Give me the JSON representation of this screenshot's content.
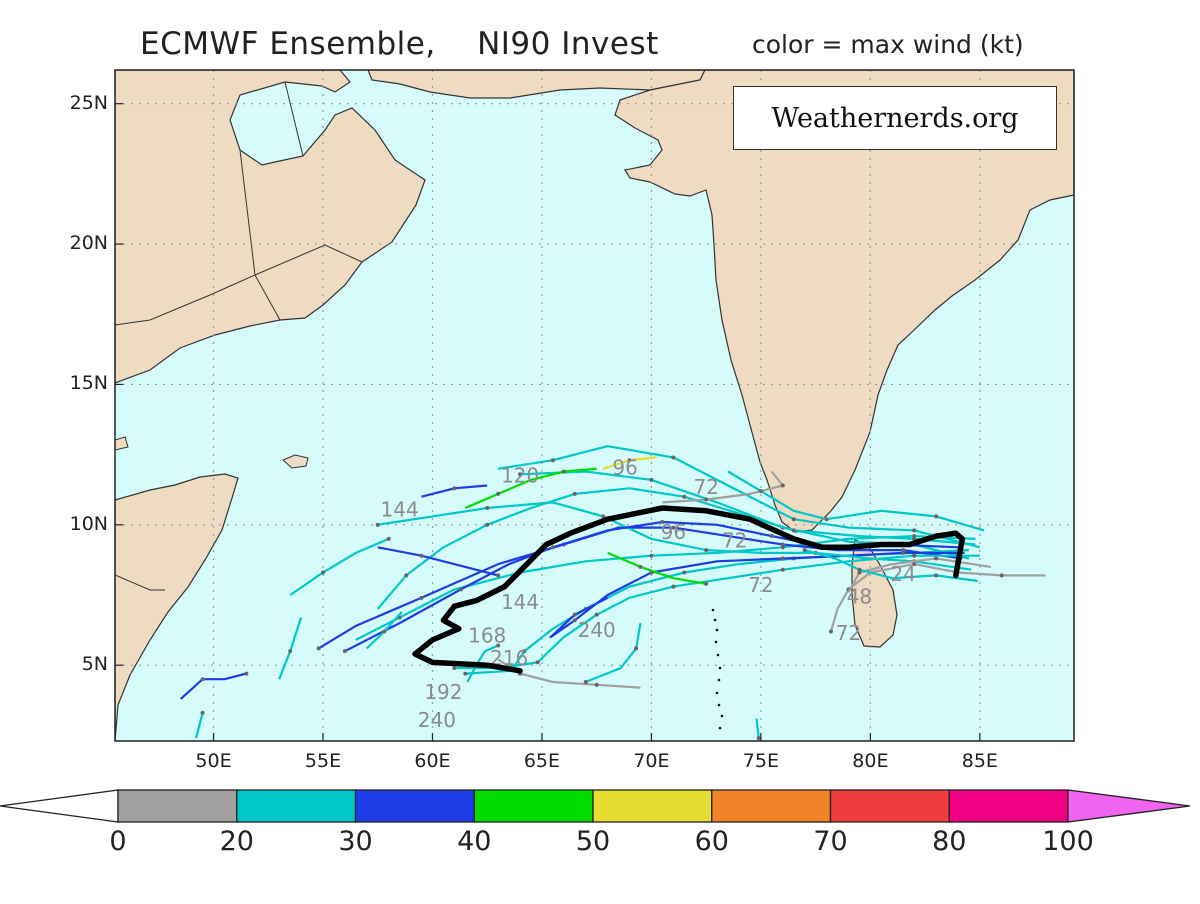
{
  "title": {
    "main": "ECMWF Ensemble,    NI90 Invest",
    "sub": "color = max wind (kt)"
  },
  "watermark": "Weathernerds.org",
  "axes": {
    "lon_ticks": [
      {
        "value": 50,
        "label": "50E"
      },
      {
        "value": 55,
        "label": "55E"
      },
      {
        "value": 60,
        "label": "60E"
      },
      {
        "value": 65,
        "label": "65E"
      },
      {
        "value": 70,
        "label": "70E"
      },
      {
        "value": 75,
        "label": "75E"
      },
      {
        "value": 80,
        "label": "80E"
      },
      {
        "value": 85,
        "label": "85E"
      }
    ],
    "lat_ticks": [
      {
        "value": 25,
        "label": "25N"
      },
      {
        "value": 20,
        "label": "20N"
      },
      {
        "value": 15,
        "label": "15N"
      },
      {
        "value": 10,
        "label": "10N"
      },
      {
        "value": 5,
        "label": "5N"
      }
    ],
    "lon_range": [
      45.5,
      89.3
    ],
    "lat_range": [
      2.3,
      26.2
    ],
    "grid": "dotted"
  },
  "colors": {
    "ocean": "#d6fbfb",
    "land": "#eedbc2",
    "coast": "#333333",
    "mean_track": "#000000"
  },
  "colorbar": {
    "bins": [
      {
        "from": 0,
        "to": 20,
        "color": "#a0a0a0"
      },
      {
        "from": 20,
        "to": 30,
        "color": "#00c8c8"
      },
      {
        "from": 30,
        "to": 40,
        "color": "#1e3ce6"
      },
      {
        "from": 40,
        "to": 50,
        "color": "#00dc00"
      },
      {
        "from": 50,
        "to": 60,
        "color": "#e6dc32"
      },
      {
        "from": 60,
        "to": 70,
        "color": "#f08228"
      },
      {
        "from": 70,
        "to": 80,
        "color": "#f03c3c"
      },
      {
        "from": 80,
        "to": 100,
        "color": "#f00082"
      }
    ],
    "low_extension_color": "#ffffff",
    "high_extension_color": "#f064f0",
    "labels": [
      "0",
      "20",
      "30",
      "40",
      "50",
      "60",
      "70",
      "80",
      "100"
    ]
  },
  "forecast_hour_labels": [
    {
      "text": "144",
      "lon": 58.5,
      "lat": 10.3
    },
    {
      "text": "120",
      "lon": 64.0,
      "lat": 11.5
    },
    {
      "text": "96",
      "lon": 68.8,
      "lat": 11.8
    },
    {
      "text": "72",
      "lon": 72.5,
      "lat": 11.1
    },
    {
      "text": "96",
      "lon": 71.0,
      "lat": 9.5
    },
    {
      "text": "72",
      "lon": 73.8,
      "lat": 9.2
    },
    {
      "text": "72",
      "lon": 75.0,
      "lat": 7.6
    },
    {
      "text": "144",
      "lon": 64.0,
      "lat": 7.0
    },
    {
      "text": "240",
      "lon": 67.5,
      "lat": 6.0
    },
    {
      "text": "168",
      "lon": 62.5,
      "lat": 5.8
    },
    {
      "text": "216",
      "lon": 63.5,
      "lat": 5.0
    },
    {
      "text": "192",
      "lon": 60.5,
      "lat": 3.8
    },
    {
      "text": "240",
      "lon": 60.2,
      "lat": 2.8
    },
    {
      "text": "72",
      "lon": 79.0,
      "lat": 5.9
    },
    {
      "text": "48",
      "lon": 79.5,
      "lat": 7.2
    },
    {
      "text": "24",
      "lon": 81.5,
      "lat": 8.0
    }
  ],
  "mean_track": [
    [
      64.0,
      4.8
    ],
    [
      62.5,
      5.0
    ],
    [
      60.0,
      5.1
    ],
    [
      59.2,
      5.4
    ],
    [
      60.0,
      5.9
    ],
    [
      61.2,
      6.3
    ],
    [
      60.5,
      6.6
    ],
    [
      61.0,
      7.1
    ],
    [
      62.0,
      7.3
    ],
    [
      63.3,
      7.8
    ],
    [
      63.8,
      8.2
    ],
    [
      65.2,
      9.3
    ],
    [
      66.3,
      9.7
    ],
    [
      68.0,
      10.2
    ],
    [
      70.5,
      10.6
    ],
    [
      72.5,
      10.5
    ],
    [
      74.5,
      10.2
    ],
    [
      76.5,
      9.5
    ],
    [
      77.8,
      9.2
    ],
    [
      79.0,
      9.2
    ],
    [
      80.5,
      9.3
    ],
    [
      81.8,
      9.3
    ],
    [
      83.0,
      9.6
    ],
    [
      83.9,
      9.7
    ],
    [
      84.2,
      9.5
    ],
    [
      83.9,
      8.2
    ]
  ],
  "ensemble_tracks": [
    {
      "wind": 25,
      "points": [
        [
          84.5,
          8.8
        ],
        [
          82,
          9.3
        ],
        [
          79,
          9.4
        ],
        [
          76,
          9.9
        ],
        [
          73,
          10.8
        ],
        [
          70,
          11.6
        ],
        [
          67,
          11.9
        ],
        [
          64,
          11.8
        ]
      ]
    },
    {
      "wind": 25,
      "points": [
        [
          85,
          9.2
        ],
        [
          82,
          9.8
        ],
        [
          79,
          9.9
        ],
        [
          76.5,
          10.2
        ],
        [
          74,
          11.2
        ],
        [
          71,
          12.4
        ],
        [
          68,
          12.8
        ],
        [
          65.5,
          12.3
        ],
        [
          63,
          12.0
        ]
      ]
    },
    {
      "wind": 25,
      "points": [
        [
          84.8,
          9.5
        ],
        [
          82,
          9.6
        ],
        [
          79,
          9.5
        ],
        [
          76,
          9.2
        ],
        [
          73,
          9.0
        ],
        [
          70,
          8.9
        ],
        [
          67,
          8.7
        ],
        [
          64,
          8.3
        ],
        [
          61,
          7.7
        ],
        [
          58.5,
          6.7
        ],
        [
          56.5,
          5.9
        ]
      ]
    },
    {
      "wind": 35,
      "points": [
        [
          84.2,
          8.8
        ],
        [
          81.5,
          9.1
        ],
        [
          78.5,
          9.1
        ],
        [
          76,
          9.3
        ],
        [
          73.5,
          9.6
        ],
        [
          71,
          9.9
        ],
        [
          68.5,
          9.9
        ],
        [
          66,
          9.3
        ],
        [
          63,
          8.6
        ],
        [
          59.5,
          7.4
        ],
        [
          56.5,
          6.4
        ],
        [
          54.8,
          5.6
        ]
      ]
    },
    {
      "wind": 25,
      "points": [
        [
          84.5,
          9.1
        ],
        [
          82,
          9.0
        ],
        [
          79,
          8.9
        ],
        [
          76.5,
          8.8
        ],
        [
          74,
          8.6
        ],
        [
          71.5,
          8.3
        ],
        [
          69,
          7.8
        ],
        [
          67,
          7.0
        ],
        [
          65.5,
          6.3
        ],
        [
          64.2,
          5.5
        ],
        [
          63.6,
          4.8
        ],
        [
          61.5,
          4.7
        ]
      ]
    },
    {
      "wind": 35,
      "points": [
        [
          84.3,
          9.0
        ],
        [
          81.5,
          9.0
        ],
        [
          79,
          8.9
        ],
        [
          76,
          8.8
        ],
        [
          73,
          8.7
        ],
        [
          70,
          8.3
        ],
        [
          68,
          7.5
        ],
        [
          66.5,
          6.6
        ],
        [
          65.4,
          6.0
        ],
        [
          66.5,
          6.8
        ],
        [
          68,
          7.4
        ]
      ]
    },
    {
      "wind": 25,
      "points": [
        [
          84.6,
          8.4
        ],
        [
          82,
          8.7
        ],
        [
          80,
          8.8
        ],
        [
          77.5,
          9.0
        ],
        [
          75,
          9.0
        ],
        [
          72.5,
          9.1
        ],
        [
          70,
          9.5
        ],
        [
          67.8,
          10.3
        ],
        [
          65.5,
          10.8
        ],
        [
          62.5,
          10.6
        ],
        [
          60,
          10.3
        ],
        [
          57.5,
          10.0
        ]
      ]
    },
    {
      "wind": 35,
      "points": [
        [
          84.0,
          9.2
        ],
        [
          81,
          9.3
        ],
        [
          78,
          9.2
        ],
        [
          75.5,
          9.6
        ],
        [
          73,
          10.0
        ],
        [
          70.5,
          10.1
        ],
        [
          68,
          9.8
        ],
        [
          65.5,
          9.2
        ],
        [
          63.5,
          8.6
        ],
        [
          61.3,
          7.7
        ],
        [
          58.5,
          6.5
        ],
        [
          56.0,
          5.5
        ]
      ]
    },
    {
      "wind": 25,
      "points": [
        [
          84.8,
          9.3
        ],
        [
          82,
          9.5
        ],
        [
          79.5,
          9.6
        ],
        [
          76.5,
          9.8
        ],
        [
          74,
          10.4
        ],
        [
          71.5,
          11.0
        ],
        [
          69,
          11.3
        ],
        [
          66.5,
          11.1
        ],
        [
          64.5,
          10.6
        ],
        [
          62.5,
          10.0
        ],
        [
          60.5,
          9.2
        ],
        [
          58.8,
          8.2
        ],
        [
          57.5,
          7.0
        ]
      ]
    },
    {
      "wind": 25,
      "points": [
        [
          85,
          8.9
        ],
        [
          82,
          8.9
        ],
        [
          79,
          8.7
        ],
        [
          76,
          8.4
        ],
        [
          73.5,
          8.1
        ],
        [
          71,
          7.8
        ],
        [
          69,
          7.4
        ],
        [
          67.5,
          6.8
        ],
        [
          66,
          6.0
        ],
        [
          64.8,
          5.1
        ],
        [
          63,
          4.9
        ],
        [
          61,
          4.9
        ]
      ]
    },
    {
      "wind": 15,
      "points": [
        [
          88,
          8.2
        ],
        [
          86,
          8.2
        ],
        [
          84,
          8.3
        ],
        [
          82,
          8.6
        ],
        [
          80,
          8.3
        ],
        [
          79,
          7.7
        ],
        [
          78.5,
          7.0
        ],
        [
          78.2,
          6.2
        ]
      ]
    },
    {
      "wind": 15,
      "points": [
        [
          85.5,
          8.5
        ],
        [
          83,
          8.8
        ],
        [
          81,
          8.6
        ],
        [
          79.5,
          8.3
        ],
        [
          79.0,
          7.6
        ]
      ]
    },
    {
      "wind": 15,
      "points": [
        [
          70.5,
          10.8
        ],
        [
          72.5,
          10.9
        ],
        [
          74.5,
          11.1
        ],
        [
          76,
          11.4
        ],
        [
          75.5,
          11.9
        ]
      ]
    },
    {
      "wind": 15,
      "points": [
        [
          63,
          5.2
        ],
        [
          64,
          4.7
        ],
        [
          65.5,
          4.4
        ],
        [
          67.5,
          4.3
        ],
        [
          69.5,
          4.2
        ]
      ]
    },
    {
      "wind": 45,
      "points": [
        [
          68,
          9.0
        ],
        [
          69.5,
          8.5
        ],
        [
          71,
          8.1
        ],
        [
          72.5,
          7.9
        ]
      ]
    },
    {
      "wind": 45,
      "points": [
        [
          67.5,
          12.0
        ],
        [
          66,
          11.9
        ],
        [
          64.5,
          11.6
        ],
        [
          63,
          11.1
        ],
        [
          61.5,
          10.6
        ]
      ]
    },
    {
      "wind": 55,
      "points": [
        [
          67.8,
          12.0
        ],
        [
          69,
          12.3
        ],
        [
          70.2,
          12.4
        ]
      ]
    },
    {
      "wind": 35,
      "points": [
        [
          59.5,
          11.0
        ],
        [
          61,
          11.3
        ],
        [
          62.5,
          11.4
        ]
      ]
    },
    {
      "wind": 35,
      "points": [
        [
          57.5,
          9.2
        ],
        [
          59.5,
          8.9
        ],
        [
          61.5,
          8.5
        ],
        [
          63.0,
          8.2
        ]
      ]
    },
    {
      "wind": 35,
      "points": [
        [
          48.5,
          3.8
        ],
        [
          49.5,
          4.5
        ],
        [
          50.5,
          4.5
        ],
        [
          51.5,
          4.7
        ]
      ]
    },
    {
      "wind": 25,
      "points": [
        [
          53.5,
          7.5
        ],
        [
          55,
          8.3
        ],
        [
          56.5,
          9.0
        ],
        [
          58,
          9.5
        ]
      ]
    },
    {
      "wind": 25,
      "points": [
        [
          53,
          4.5
        ],
        [
          53.5,
          5.5
        ],
        [
          54,
          6.7
        ]
      ]
    },
    {
      "wind": 25,
      "points": [
        [
          57,
          5.6
        ],
        [
          57.8,
          6.2
        ],
        [
          58.6,
          6.9
        ]
      ]
    },
    {
      "wind": 25,
      "points": [
        [
          69.5,
          6.5
        ],
        [
          69.3,
          5.6
        ],
        [
          68.6,
          4.9
        ],
        [
          67,
          4.4
        ]
      ]
    },
    {
      "wind": 25,
      "points": [
        [
          61.6,
          4.4
        ],
        [
          62,
          5.0
        ],
        [
          62.4,
          5.5
        ],
        [
          63.0,
          5.7
        ]
      ]
    },
    {
      "wind": 25,
      "points": [
        [
          74.8,
          3.1
        ],
        [
          74.9,
          2.4
        ]
      ]
    },
    {
      "wind": 25,
      "points": [
        [
          49.2,
          2.4
        ],
        [
          49.5,
          3.3
        ]
      ]
    },
    {
      "wind": 25,
      "points": [
        [
          85.2,
          9.8
        ],
        [
          83,
          10.3
        ],
        [
          80.5,
          10.5
        ],
        [
          78,
          10.2
        ],
        [
          76.5,
          10.5
        ],
        [
          75,
          11.2
        ],
        [
          73.5,
          11.9
        ]
      ]
    },
    {
      "wind": 25,
      "points": [
        [
          84.9,
          8.0
        ],
        [
          83,
          8.2
        ],
        [
          81,
          8.1
        ],
        [
          79.5,
          8.4
        ],
        [
          78.4,
          8.8
        ],
        [
          77,
          9.1
        ]
      ]
    }
  ]
}
